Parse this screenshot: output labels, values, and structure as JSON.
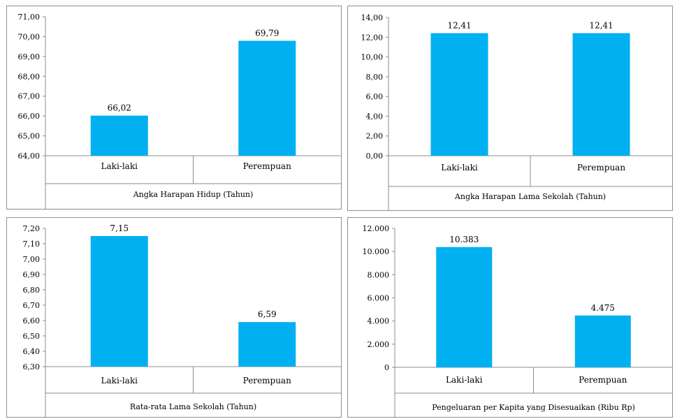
{
  "colors": {
    "bar": "#00B0F0",
    "axis": "#8c8c8c",
    "frame": "#8e8e8e"
  },
  "chart_data": [
    {
      "type": "bar",
      "categories": [
        "Laki-laki",
        "Perempuan"
      ],
      "values": [
        66.02,
        69.79
      ],
      "value_labels": [
        "66,02",
        "69,79"
      ],
      "ylim": [
        64,
        71
      ],
      "yticks": [
        "64,00",
        "65,00",
        "66,00",
        "67,00",
        "68,00",
        "69,00",
        "70,00",
        "71,00"
      ],
      "xlabel": "Angka Harapan Hidup (Tahun)",
      "grid": false
    },
    {
      "type": "bar",
      "categories": [
        "Laki-laki",
        "Perempuan"
      ],
      "values": [
        12.41,
        12.41
      ],
      "value_labels": [
        "12,41",
        "12,41"
      ],
      "ylim": [
        0,
        14
      ],
      "yticks": [
        "0,00",
        "2,00",
        "4,00",
        "6,00",
        "8,00",
        "10,00",
        "12,00",
        "14,00"
      ],
      "xlabel": "Angka Harapan Lama Sekolah (Tahun)",
      "grid": false
    },
    {
      "type": "bar",
      "categories": [
        "Laki-laki",
        "Perempuan"
      ],
      "values": [
        7.15,
        6.59
      ],
      "value_labels": [
        "7,15",
        "6,59"
      ],
      "ylim": [
        6.3,
        7.2
      ],
      "yticks": [
        "6,30",
        "6,40",
        "6,50",
        "6,60",
        "6,70",
        "6,80",
        "6,90",
        "7,00",
        "7,10",
        "7,20"
      ],
      "xlabel": "Rata-rata Lama Sekolah (Tahun)",
      "grid": false
    },
    {
      "type": "bar",
      "categories": [
        "Laki-laki",
        "Perempuan"
      ],
      "values": [
        10383,
        4475
      ],
      "value_labels": [
        "10.383",
        "4.475"
      ],
      "ylim": [
        0,
        12000
      ],
      "yticks": [
        "0",
        "2.000",
        "4.000",
        "6.000",
        "8.000",
        "10.000",
        "12.000"
      ],
      "xlabel": "Pengeluaran per Kapita yang Disesuaikan (Ribu Rp)",
      "grid": false
    }
  ]
}
